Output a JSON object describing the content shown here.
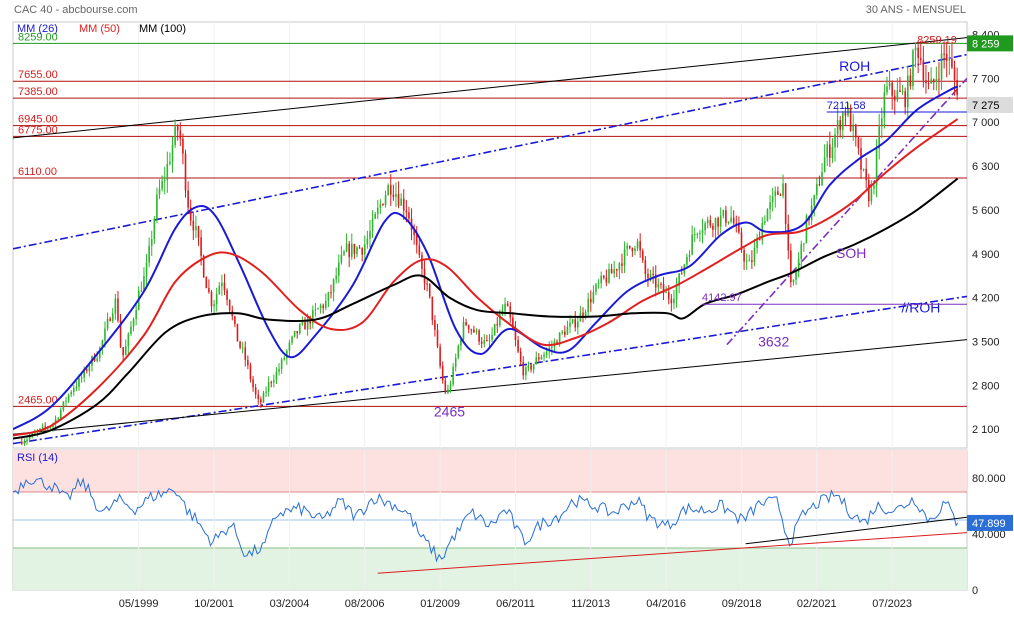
{
  "header": {
    "instrument": "CAC 40 - abcbourse.com",
    "period": "30 ANS - MENSUEL"
  },
  "legend": [
    {
      "label": "MM (26)",
      "color": "#1a1ad6"
    },
    {
      "label": "MM (50)",
      "color": "#e0211f"
    },
    {
      "label": "MM (100)",
      "color": "#000000"
    }
  ],
  "colors": {
    "up_candle": "#2db52d",
    "down_candle": "#d81d1d",
    "mm26": "#1a1ad6",
    "mm50": "#e0211f",
    "mm100": "#000000",
    "channel": "#1a1ad6",
    "support_line": "#7b2fc0",
    "level_line": "#b01010",
    "resistance_green": "#1f9a1f",
    "rsi_line": "#2a6fd6",
    "rsi_overbought_zone": "#fde0e0",
    "rsi_oversold_zone": "#e3f3e3"
  },
  "chart_data": [
    {
      "type": "candlestick",
      "title": "CAC 40",
      "ylim": [
        1800,
        8600
      ],
      "y_ticks": [
        8400,
        7700,
        7000,
        6300,
        5600,
        4900,
        4200,
        3500,
        2800,
        2100
      ],
      "y_tick_labels": [
        "8 400",
        "7 700",
        "7 000",
        "6 300",
        "5 600",
        "4 900",
        "4 200",
        "3 500",
        "2 800",
        "2 100"
      ],
      "x_range": [
        1995.3,
        2025.9
      ],
      "x_tick_labels": [
        "05/1999",
        "10/2001",
        "03/2004",
        "08/2006",
        "01/2009",
        "06/2011",
        "11/2013",
        "04/2016",
        "09/2018",
        "02/2021",
        "07/2023"
      ],
      "x_tick_values": [
        1999.33,
        2001.75,
        2004.17,
        2006.58,
        2009.0,
        2011.42,
        2013.83,
        2016.25,
        2018.67,
        2021.08,
        2023.5
      ],
      "candle_anchors": [
        [
          1995.5,
          1900
        ],
        [
          1996.5,
          2150
        ],
        [
          1997.3,
          2800
        ],
        [
          1998.0,
          3300
        ],
        [
          1998.6,
          4150
        ],
        [
          1998.8,
          3250
        ],
        [
          1999.5,
          4500
        ],
        [
          2000.0,
          5900
        ],
        [
          2000.6,
          6900
        ],
        [
          2001.0,
          5500
        ],
        [
          2001.7,
          4100
        ],
        [
          2002.0,
          4500
        ],
        [
          2002.6,
          3400
        ],
        [
          2003.2,
          2500
        ],
        [
          2003.6,
          2900
        ],
        [
          2004.5,
          3700
        ],
        [
          2005.3,
          4100
        ],
        [
          2006.0,
          4950
        ],
        [
          2006.5,
          5000
        ],
        [
          2007.4,
          6000
        ],
        [
          2007.9,
          5650
        ],
        [
          2008.5,
          4500
        ],
        [
          2009.2,
          2650
        ],
        [
          2009.8,
          3800
        ],
        [
          2010.5,
          3450
        ],
        [
          2011.1,
          4050
        ],
        [
          2011.7,
          3000
        ],
        [
          2012.3,
          3300
        ],
        [
          2013.2,
          3750
        ],
        [
          2014.3,
          4500
        ],
        [
          2015.3,
          5100
        ],
        [
          2015.6,
          4550
        ],
        [
          2016.4,
          4200
        ],
        [
          2017.3,
          5350
        ],
        [
          2018.3,
          5500
        ],
        [
          2018.9,
          4700
        ],
        [
          2019.5,
          5600
        ],
        [
          2020.0,
          6000
        ],
        [
          2020.25,
          4350
        ],
        [
          2020.9,
          5600
        ],
        [
          2021.4,
          6500
        ],
        [
          2022.0,
          7200
        ],
        [
          2022.8,
          5800
        ],
        [
          2023.3,
          7500
        ],
        [
          2023.9,
          7400
        ],
        [
          2024.3,
          8200
        ],
        [
          2024.7,
          7500
        ],
        [
          2025.2,
          8100
        ],
        [
          2025.6,
          7550
        ]
      ],
      "moving_averages": [
        {
          "name": "MM (26)",
          "points": [
            [
              1995.3,
              2100
            ],
            [
              1996.5,
              2450
            ],
            [
              1998.0,
              3300
            ],
            [
              1999.5,
              4300
            ],
            [
              2000.5,
              5300
            ],
            [
              2001.2,
              5650
            ],
            [
              2001.8,
              5500
            ],
            [
              2002.6,
              4700
            ],
            [
              2003.5,
              3700
            ],
            [
              2004.2,
              3250
            ],
            [
              2005.0,
              3600
            ],
            [
              2006.2,
              4400
            ],
            [
              2007.2,
              5400
            ],
            [
              2007.8,
              5500
            ],
            [
              2008.6,
              4900
            ],
            [
              2009.5,
              3700
            ],
            [
              2010.3,
              3300
            ],
            [
              2011.2,
              3700
            ],
            [
              2012.3,
              3400
            ],
            [
              2013.1,
              3350
            ],
            [
              2014.0,
              3800
            ],
            [
              2015.0,
              4300
            ],
            [
              2016.0,
              4550
            ],
            [
              2017.0,
              4700
            ],
            [
              2018.0,
              5200
            ],
            [
              2018.8,
              5400
            ],
            [
              2019.5,
              5250
            ],
            [
              2020.6,
              5350
            ],
            [
              2021.5,
              6000
            ],
            [
              2022.4,
              6400
            ],
            [
              2023.3,
              6700
            ],
            [
              2024.3,
              7200
            ],
            [
              2025.3,
              7500
            ],
            [
              2025.6,
              7570
            ]
          ]
        },
        {
          "name": "MM (50)",
          "points": [
            [
              1995.3,
              2000
            ],
            [
              1996.5,
              2150
            ],
            [
              1998.0,
              2750
            ],
            [
              1999.5,
              3600
            ],
            [
              2000.5,
              4450
            ],
            [
              2001.5,
              4850
            ],
            [
              2002.3,
              4900
            ],
            [
              2003.3,
              4600
            ],
            [
              2004.5,
              4000
            ],
            [
              2005.5,
              3700
            ],
            [
              2006.5,
              3800
            ],
            [
              2007.5,
              4450
            ],
            [
              2008.4,
              4800
            ],
            [
              2009.2,
              4700
            ],
            [
              2010.2,
              4200
            ],
            [
              2011.3,
              3750
            ],
            [
              2012.3,
              3450
            ],
            [
              2013.3,
              3550
            ],
            [
              2014.4,
              3800
            ],
            [
              2015.5,
              4150
            ],
            [
              2016.6,
              4400
            ],
            [
              2017.5,
              4650
            ],
            [
              2018.7,
              5000
            ],
            [
              2019.5,
              5200
            ],
            [
              2020.5,
              5250
            ],
            [
              2021.4,
              5450
            ],
            [
              2022.3,
              5750
            ],
            [
              2023.3,
              6200
            ],
            [
              2024.3,
              6600
            ],
            [
              2025.6,
              7050
            ]
          ]
        },
        {
          "name": "MM (100)",
          "points": [
            [
              1995.3,
              1950
            ],
            [
              1996.5,
              2080
            ],
            [
              1998.0,
              2500
            ],
            [
              1999.0,
              3000
            ],
            [
              2000.2,
              3650
            ],
            [
              2001.3,
              3900
            ],
            [
              2002.5,
              3950
            ],
            [
              2003.5,
              3850
            ],
            [
              2005.0,
              3850
            ],
            [
              2006.2,
              4100
            ],
            [
              2007.5,
              4400
            ],
            [
              2008.4,
              4550
            ],
            [
              2009.3,
              4200
            ],
            [
              2010.2,
              4000
            ],
            [
              2011.3,
              3950
            ],
            [
              2012.5,
              3900
            ],
            [
              2014.0,
              3900
            ],
            [
              2015.2,
              3950
            ],
            [
              2016.3,
              3950
            ],
            [
              2016.8,
              3870
            ],
            [
              2017.5,
              4100
            ],
            [
              2018.5,
              4250
            ],
            [
              2019.5,
              4450
            ],
            [
              2020.3,
              4600
            ],
            [
              2021.3,
              4850
            ],
            [
              2022.3,
              5050
            ],
            [
              2023.3,
              5300
            ],
            [
              2024.3,
              5600
            ],
            [
              2025.6,
              6100
            ]
          ]
        }
      ],
      "channel_lines": [
        {
          "name": "ROH",
          "style": "dash-dot",
          "points": [
            [
              1995.3,
              4980
            ],
            [
              2025.9,
              8080
            ]
          ]
        },
        {
          "name": "//ROH",
          "style": "dash-dot",
          "points": [
            [
              1995.3,
              1870
            ],
            [
              2025.9,
              4220
            ]
          ]
        },
        {
          "name": "upper-channel",
          "style": "solid",
          "points": [
            [
              1995.3,
              6750
            ],
            [
              2025.9,
              8350
            ]
          ]
        },
        {
          "name": "lower-channel",
          "style": "solid",
          "points": [
            [
              1995.3,
              2020
            ],
            [
              2025.9,
              3530
            ]
          ]
        },
        {
          "name": "SOH",
          "style": "dash-dot",
          "points": [
            [
              2018.2,
              3450
            ],
            [
              2025.9,
              7700
            ]
          ]
        }
      ],
      "horizontal_levels": [
        {
          "label": "8259.00",
          "value": 8259,
          "color": "#1f9a1f"
        },
        {
          "label": "7655.00",
          "value": 7655,
          "color": "#b01010"
        },
        {
          "label": "7385.00",
          "value": 7385,
          "color": "#b01010"
        },
        {
          "label": "6945.00",
          "value": 6945,
          "color": "#b01010"
        },
        {
          "label": "6775.00",
          "value": 6775,
          "color": "#b01010"
        },
        {
          "label": "6110.00",
          "value": 6110,
          "color": "#b01010"
        },
        {
          "label": "2465.00",
          "value": 2465,
          "color": "#b01010"
        }
      ],
      "annotations": [
        {
          "text": "8259.19",
          "x": 2024.3,
          "y": 8259.19,
          "color": "#d81d1d"
        },
        {
          "text": "ROH",
          "x": 2021.8,
          "y": 7820,
          "color": "#1a1ad6"
        },
        {
          "text": "7211.58",
          "x": 2021.4,
          "y": 7211.58,
          "color": "#1a1ad6"
        },
        {
          "text": "SOH",
          "x": 2021.7,
          "y": 4830,
          "color": "#7b2fc0"
        },
        {
          "text": "4142.97",
          "x": 2017.4,
          "y": 4142.97,
          "color": "#7b2fc0"
        },
        {
          "text": "//ROH",
          "x": 2023.8,
          "y": 3960,
          "color": "#1a1ad6"
        },
        {
          "text": "3632",
          "x": 2019.2,
          "y": 3420,
          "color": "#7b2fc0"
        },
        {
          "text": "2465",
          "x": 2008.8,
          "y": 2300,
          "color": "#7b2fc0"
        }
      ],
      "price_tags": [
        {
          "text": "8 259",
          "value": 8259,
          "background": "#1f9a1f",
          "color": "#ffffff"
        },
        {
          "text": "7 275",
          "value": 7275,
          "background": "#dcdcdc",
          "color": "#000000"
        }
      ]
    },
    {
      "type": "line",
      "title": "RSI (14)",
      "ylim": [
        0,
        100
      ],
      "y_ticks": [
        80,
        40,
        0
      ],
      "y_tick_labels": [
        "80.000",
        "40.000",
        "0"
      ],
      "overbought": 70,
      "oversold": 30,
      "midline": 50,
      "current_value_label": "47.899",
      "rsi_anchors": [
        [
          1995.3,
          70
        ],
        [
          1995.8,
          80
        ],
        [
          1996.5,
          75
        ],
        [
          1997.0,
          65
        ],
        [
          1997.5,
          77
        ],
        [
          1998.2,
          55
        ],
        [
          1998.7,
          64
        ],
        [
          1999.2,
          58
        ],
        [
          1999.8,
          67
        ],
        [
          2000.5,
          72
        ],
        [
          2001.0,
          54
        ],
        [
          2001.7,
          35
        ],
        [
          2002.3,
          46
        ],
        [
          2002.8,
          25
        ],
        [
          2003.3,
          30
        ],
        [
          2003.8,
          55
        ],
        [
          2004.5,
          58
        ],
        [
          2005.2,
          50
        ],
        [
          2005.8,
          63
        ],
        [
          2006.3,
          53
        ],
        [
          2006.9,
          66
        ],
        [
          2007.4,
          62
        ],
        [
          2007.9,
          56
        ],
        [
          2008.5,
          35
        ],
        [
          2009.0,
          22
        ],
        [
          2009.5,
          40
        ],
        [
          2010.0,
          55
        ],
        [
          2010.6,
          46
        ],
        [
          2011.1,
          57
        ],
        [
          2011.7,
          35
        ],
        [
          2012.3,
          48
        ],
        [
          2012.8,
          53
        ],
        [
          2013.3,
          64
        ],
        [
          2014.0,
          60
        ],
        [
          2014.5,
          55
        ],
        [
          2015.3,
          64
        ],
        [
          2015.8,
          50
        ],
        [
          2016.3,
          46
        ],
        [
          2016.9,
          58
        ],
        [
          2017.5,
          57
        ],
        [
          2018.0,
          60
        ],
        [
          2018.7,
          50
        ],
        [
          2019.3,
          62
        ],
        [
          2019.8,
          63
        ],
        [
          2020.2,
          35
        ],
        [
          2020.7,
          55
        ],
        [
          2021.2,
          63
        ],
        [
          2021.7,
          68
        ],
        [
          2022.2,
          55
        ],
        [
          2022.6,
          48
        ],
        [
          2023.0,
          60
        ],
        [
          2023.6,
          57
        ],
        [
          2024.2,
          65
        ],
        [
          2024.7,
          50
        ],
        [
          2025.2,
          62
        ],
        [
          2025.6,
          47.9
        ]
      ],
      "trend_lines": [
        {
          "color": "#000000",
          "points": [
            [
              2018.8,
              33
            ],
            [
              2025.9,
              52
            ]
          ]
        },
        {
          "color": "#d81d1d",
          "points": [
            [
              2007.0,
              12
            ],
            [
              2025.9,
              41
            ]
          ]
        }
      ]
    }
  ]
}
